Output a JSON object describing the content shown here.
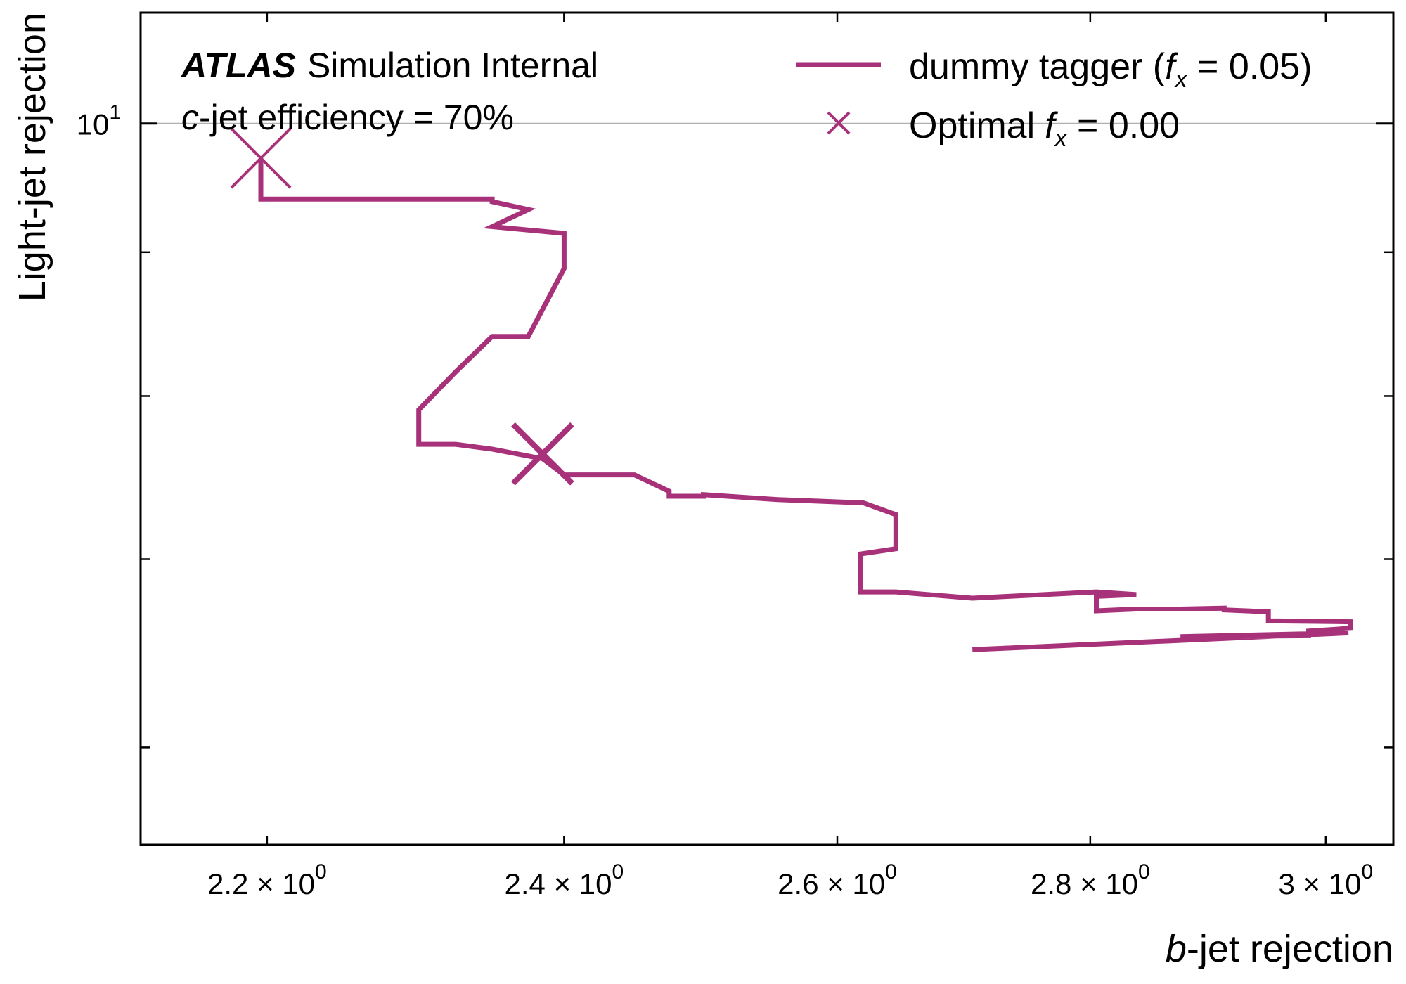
{
  "chart_data": {
    "type": "line",
    "xlabel": {
      "var": "b",
      "text": "-jet rejection"
    },
    "ylabel": "Light-jet rejection",
    "xscale": "log",
    "yscale": "log",
    "xlim": [
      2.12,
      3.06
    ],
    "ylim": [
      5.54,
      10.95
    ],
    "x_ticks": [
      {
        "value": 2.2,
        "mantissa": "2.2",
        "exponent": "0"
      },
      {
        "value": 2.4,
        "mantissa": "2.4",
        "exponent": "0"
      },
      {
        "value": 2.6,
        "mantissa": "2.6",
        "exponent": "0"
      },
      {
        "value": 2.8,
        "mantissa": "2.8",
        "exponent": "0"
      },
      {
        "value": 3.0,
        "mantissa": "3",
        "exponent": "0"
      }
    ],
    "y_ticks": [
      {
        "value": 10,
        "base": "10",
        "exponent": "1"
      }
    ],
    "y_minor_ticks": [
      9,
      8,
      7,
      6
    ],
    "grid": "horizontal at major y ticks",
    "legend_position": "top-right",
    "annotations": {
      "experiment": "ATLAS",
      "status": "Simulation Internal",
      "line2_var": "c",
      "line2_text": "-jet efficiency = 70%"
    },
    "series": [
      {
        "name": {
          "prefix": "dummy tagger (",
          "var": "f",
          "sub": "x",
          "suffix": " = 0.05)"
        },
        "color": "#a8327a",
        "x": [
          2.705,
          3.02,
          2.875,
          2.985,
          2.985,
          3.022,
          3.022,
          2.95,
          2.95,
          2.912,
          2.912,
          2.875,
          2.838,
          2.805,
          2.805,
          2.838,
          2.805,
          2.705,
          2.645,
          2.618,
          2.618,
          2.645,
          2.645,
          2.62,
          2.555,
          2.5,
          2.5,
          2.475,
          2.475,
          2.45,
          2.4,
          2.385,
          2.35,
          2.325,
          2.3,
          2.3,
          2.325,
          2.35,
          2.375,
          2.4,
          2.4,
          2.35,
          2.375,
          2.35,
          2.35,
          2.196,
          2.196
        ],
        "y": [
          6.5,
          6.59,
          6.57,
          6.575,
          6.6,
          6.615,
          6.65,
          6.655,
          6.705,
          6.715,
          6.725,
          6.72,
          6.72,
          6.71,
          6.79,
          6.8,
          6.815,
          6.78,
          6.815,
          6.815,
          7.03,
          7.06,
          7.26,
          7.33,
          7.35,
          7.38,
          7.37,
          7.37,
          7.4,
          7.5,
          7.5,
          7.6,
          7.66,
          7.69,
          7.69,
          7.91,
          8.16,
          8.4,
          8.4,
          8.88,
          9.14,
          9.19,
          9.32,
          9.38,
          9.4,
          9.4,
          9.72
        ]
      }
    ],
    "markers": [
      {
        "name": "Optimal",
        "label": {
          "var": "f",
          "sub": "x",
          "suffix": " = 0.00"
        },
        "x": 2.196,
        "y": 9.72,
        "symbol": "x",
        "in_legend": true
      },
      {
        "x": 2.385,
        "y": 7.63,
        "symbol": "x",
        "in_legend": false
      }
    ]
  }
}
